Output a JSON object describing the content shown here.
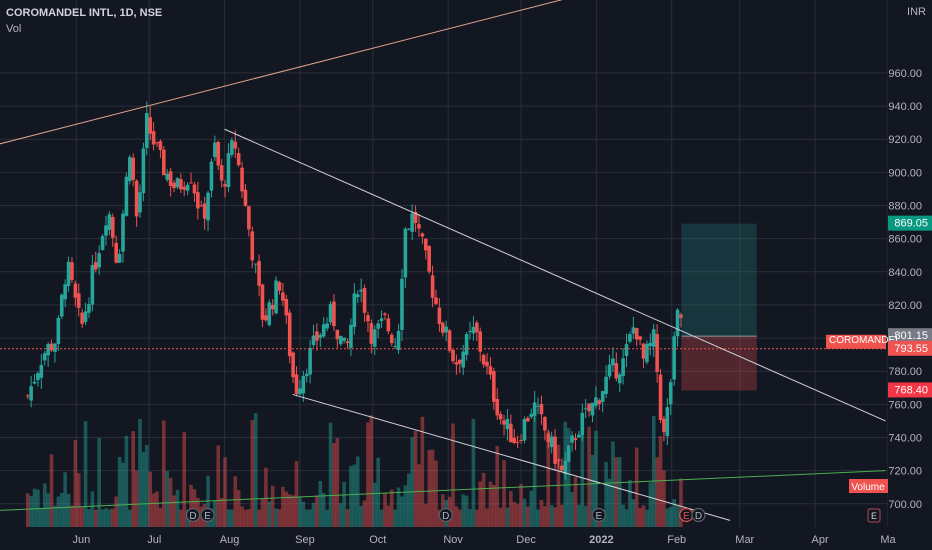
{
  "header": {
    "symbol": "COROMANDEL INTL, 1D, NSE",
    "volume_label": "Vol"
  },
  "currency": "INR",
  "colors": {
    "up": "#26a69a",
    "down": "#ef5350",
    "background": "#131722",
    "grid": "#2a2e39",
    "axis_text": "#b2b5be",
    "trend": "#d1d4dc",
    "upper_trend": "#e0a58c",
    "green_trend": "#4caf50",
    "pointer": "#e4504e"
  },
  "chart_data": {
    "type": "candlestick",
    "title": "COROMANDEL INTL, 1D, NSE",
    "y_axis": {
      "ylim": [
        686,
        1004
      ],
      "ticks": [
        700,
        720,
        740,
        760,
        780,
        800,
        820,
        840,
        860,
        880,
        900,
        920,
        940,
        960
      ]
    },
    "x_axis": {
      "ticks": [
        "Jun",
        "Jul",
        "Aug",
        "Sep",
        "Oct",
        "Nov",
        "Dec",
        "2022",
        "Feb",
        "Mar",
        "Apr",
        "Ma"
      ]
    },
    "price_tags": [
      {
        "label": "869.05",
        "value": 869.05,
        "color": "#089981"
      },
      {
        "label": "801.15",
        "value": 801.15,
        "color": "#787b86"
      },
      {
        "label": "793.55",
        "value": 793.55,
        "color": "#ef5350",
        "name": "COROMANDEL"
      },
      {
        "label": "768.40",
        "value": 768.4,
        "color": "#f23645"
      }
    ],
    "position": {
      "target": 869.05,
      "entry": 801.15,
      "stop": 768.4
    },
    "close_line": 793.55,
    "legend_badge": "Volume",
    "events": [
      "D",
      "E",
      "D",
      "E",
      "E",
      "D"
    ],
    "keypoints": [
      [
        "2021-05-12",
        765
      ],
      [
        "2021-05-18",
        790
      ],
      [
        "2021-05-24",
        800
      ],
      [
        "2021-05-28",
        845
      ],
      [
        "2021-06-03",
        805
      ],
      [
        "2021-06-08",
        840
      ],
      [
        "2021-06-14",
        880
      ],
      [
        "2021-06-18",
        845
      ],
      [
        "2021-06-23",
        915
      ],
      [
        "2021-06-26",
        870
      ],
      [
        "2021-06-30",
        930
      ],
      [
        "2021-07-06",
        905
      ],
      [
        "2021-07-12",
        890
      ],
      [
        "2021-07-18",
        900
      ],
      [
        "2021-07-23",
        870
      ],
      [
        "2021-07-28",
        915
      ],
      [
        "2021-07-31",
        890
      ],
      [
        "2021-08-05",
        920
      ],
      [
        "2021-08-10",
        875
      ],
      [
        "2021-08-17",
        810
      ],
      [
        "2021-08-24",
        835
      ],
      [
        "2021-08-30",
        768
      ],
      [
        "2021-09-08",
        800
      ],
      [
        "2021-09-14",
        815
      ],
      [
        "2021-09-20",
        790
      ],
      [
        "2021-09-25",
        835
      ],
      [
        "2021-10-01",
        800
      ],
      [
        "2021-10-06",
        810
      ],
      [
        "2021-10-11",
        795
      ],
      [
        "2021-10-14",
        865
      ],
      [
        "2021-10-18",
        875
      ],
      [
        "2021-10-23",
        845
      ],
      [
        "2021-10-28",
        815
      ],
      [
        "2021-11-04",
        785
      ],
      [
        "2021-11-12",
        805
      ],
      [
        "2021-11-17",
        780
      ],
      [
        "2021-11-23",
        750
      ],
      [
        "2021-11-29",
        738
      ],
      [
        "2021-12-06",
        760
      ],
      [
        "2021-12-12",
        740
      ],
      [
        "2021-12-18",
        718
      ],
      [
        "2021-12-24",
        745
      ],
      [
        "2021-12-31",
        760
      ],
      [
        "2022-01-07",
        780
      ],
      [
        "2022-01-12",
        785
      ],
      [
        "2022-01-17",
        810
      ],
      [
        "2022-01-20",
        785
      ],
      [
        "2022-01-25",
        800
      ],
      [
        "2022-01-27",
        760
      ],
      [
        "2022-01-29",
        738
      ],
      [
        "2022-02-02",
        795
      ],
      [
        "2022-02-04",
        820
      ],
      [
        "2022-02-06",
        801
      ]
    ],
    "trendlines": [
      {
        "name": "resistance",
        "from": [
          "2021-08-01",
          926
        ],
        "to": [
          "2022-04-30",
          750
        ]
      },
      {
        "name": "support",
        "from": [
          "2021-08-29",
          766
        ],
        "to": [
          "2022-02-25",
          690
        ]
      },
      {
        "name": "upper",
        "from": [
          "2021-04-30",
          917
        ],
        "to": [
          "2021-12-20",
          1005
        ]
      },
      {
        "name": "lower",
        "from": [
          "2021-04-30",
          696
        ],
        "to": [
          "2022-04-30",
          720
        ]
      }
    ]
  }
}
